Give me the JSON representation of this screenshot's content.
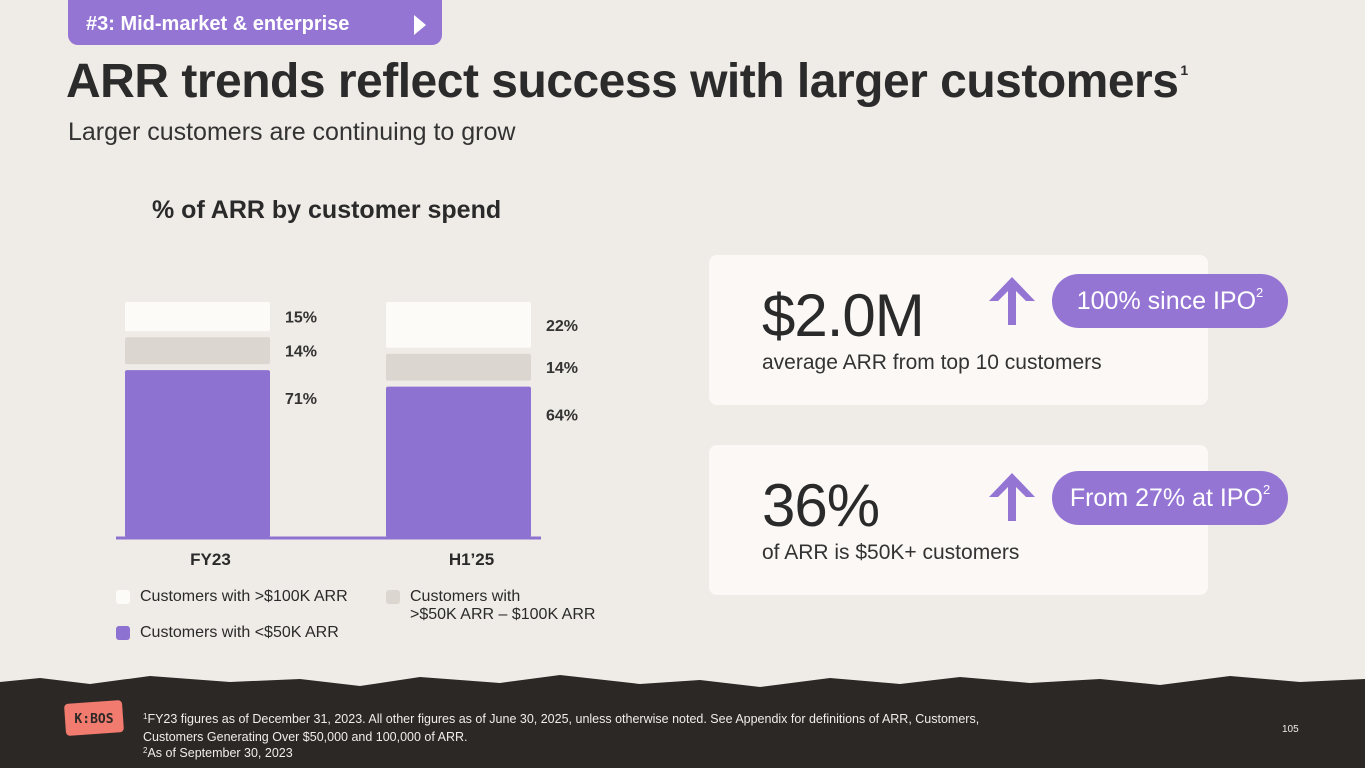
{
  "section_tag": {
    "label": "#3: Mid-market & enterprise"
  },
  "page": {
    "title": "ARR trends reflect success with larger customers",
    "title_footnote": "1",
    "subtitle": "Larger customers are continuing to grow"
  },
  "chart_data": {
    "type": "bar",
    "title": "% of ARR by customer spend",
    "stacked": true,
    "categories": [
      "FY23",
      "H1’25"
    ],
    "series": [
      {
        "name": "Customers with <$50K ARR",
        "values": [
          71,
          64
        ],
        "labels": [
          "71%",
          "64%"
        ],
        "color": "#8e72d1"
      },
      {
        "name": "Customers with >$50K ARR – $100K ARR",
        "values": [
          14,
          14
        ],
        "labels": [
          "14%",
          "14%"
        ],
        "color": "#dcd6d1"
      },
      {
        "name": "Customers with >$100K ARR",
        "values": [
          15,
          22
        ],
        "labels": [
          "15%",
          "22%"
        ],
        "color": "#fdfbf8"
      }
    ],
    "ylim": [
      0,
      100
    ],
    "xlabel": "",
    "ylabel": ""
  },
  "legend": {
    "item_100k": "Customers with >$100K ARR",
    "item_50k_100k_line1": "Customers with",
    "item_50k_100k_line2": ">$50K ARR – $100K ARR",
    "item_lt50k": "Customers with <$50K ARR"
  },
  "kpis": [
    {
      "value": "$2.0M",
      "description": "average ARR from top 10 customers",
      "badge": "100% since IPO",
      "badge_footnote": "2"
    },
    {
      "value": "36%",
      "description": "of ARR is $50K+ customers",
      "badge": "From 27% at IPO",
      "badge_footnote": "2"
    }
  ],
  "footer": {
    "note1_marker": "1",
    "note1_line1": "FY23 figures as of December 31, 2023. All other figures as of June 30, 2025, unless otherwise noted. See Appendix for definitions of ARR, Customers,",
    "note1_line2": "Customers Generating Over $50,000 and 100,000 of ARR.",
    "note2_marker": "2",
    "note2": "As of September 30, 2023",
    "page_number": "105",
    "logo_text": "K:BOS"
  },
  "colors": {
    "accent": "#9575d4",
    "background": "#efebe6",
    "card": "#fbf8f5",
    "footer": "#2b2826"
  }
}
